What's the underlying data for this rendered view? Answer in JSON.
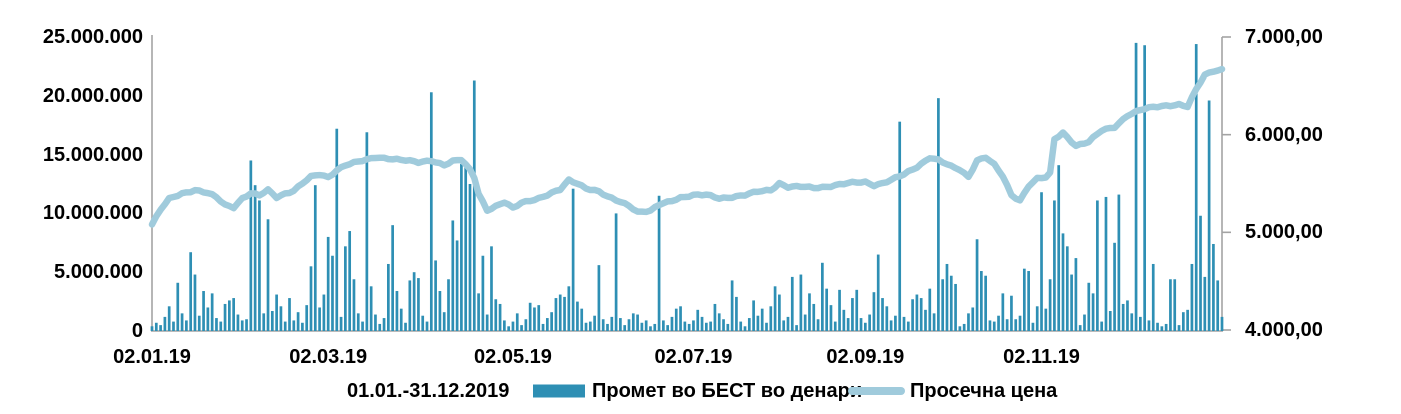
{
  "chart_data": {
    "type": "bar",
    "combo": "bar+line dual axis",
    "title": "",
    "n_points": 250,
    "x_tick_labels": [
      "02.01.19",
      "02.03.19",
      "02.05.19",
      "02.07.19",
      "02.09.19",
      "02.11.19"
    ],
    "x_tick_indices": [
      0,
      41,
      84,
      126,
      166,
      207
    ],
    "left_axis": {
      "labels": [
        "25.000.000",
        "20.000.000",
        "15.000.000",
        "10.000.000",
        "5.000.000",
        "0"
      ],
      "min": 0,
      "max": 25000000,
      "applies_to": "Промет во БЕСТ во денари"
    },
    "right_axis": {
      "labels": [
        "7.000,00",
        "6.000,00",
        "5.000,00",
        "4.000,00"
      ],
      "min": 4000,
      "max": 7000,
      "applies_to": "Просечна цена"
    },
    "grid": "off",
    "legend_position": "bottom",
    "series": [
      {
        "name": "Промет во БЕСТ во денари",
        "type": "bar",
        "axis": "left",
        "unit": "denars (millions)",
        "values_millions": [
          0.4,
          0.7,
          0.5,
          1.2,
          2.1,
          0.8,
          4.1,
          1.5,
          0.9,
          6.7,
          4.8,
          1.3,
          3.4,
          2.0,
          3.2,
          1.1,
          0.8,
          2.3,
          2.6,
          2.8,
          1.4,
          0.9,
          1.0,
          14.5,
          12.4,
          11.1,
          1.5,
          9.5,
          1.7,
          3.1,
          2.1,
          0.8,
          2.8,
          0.9,
          1.6,
          0.7,
          2.2,
          5.5,
          12.4,
          2.0,
          3.1,
          8.0,
          6.4,
          17.2,
          1.2,
          7.2,
          8.5,
          4.4,
          1.5,
          0.8,
          16.9,
          3.8,
          1.4,
          0.6,
          1.1,
          5.7,
          9.0,
          3.4,
          1.9,
          0.7,
          4.3,
          5.0,
          4.5,
          1.3,
          0.8,
          20.3,
          6.0,
          3.4,
          1.6,
          4.4,
          9.4,
          7.7,
          14.2,
          14.3,
          12.5,
          21.3,
          3.2,
          6.4,
          1.4,
          7.2,
          2.7,
          2.3,
          0.9,
          0.4,
          0.8,
          1.5,
          0.5,
          1.0,
          2.4,
          2.0,
          2.2,
          0.6,
          1.1,
          1.6,
          2.8,
          3.1,
          2.9,
          3.8,
          12.1,
          2.5,
          1.9,
          0.7,
          0.8,
          1.3,
          5.6,
          1.0,
          0.6,
          1.2,
          10.0,
          1.1,
          0.5,
          1.0,
          1.5,
          1.4,
          0.7,
          0.9,
          0.4,
          0.6,
          11.5,
          0.9,
          0.5,
          1.2,
          1.9,
          2.1,
          0.8,
          0.6,
          0.9,
          1.8,
          1.2,
          0.7,
          0.8,
          2.3,
          1.5,
          1.0,
          0.6,
          4.3,
          2.9,
          0.8,
          0.4,
          1.1,
          2.6,
          1.3,
          1.9,
          0.7,
          2.1,
          3.8,
          3.1,
          0.9,
          1.2,
          4.6,
          0.5,
          4.8,
          1.4,
          3.2,
          2.3,
          1.0,
          5.8,
          3.6,
          2.2,
          0.8,
          3.5,
          1.8,
          1.1,
          2.8,
          3.5,
          1.1,
          0.7,
          1.4,
          3.3,
          6.5,
          2.8,
          2.1,
          0.9,
          1.3,
          17.8,
          1.2,
          0.8,
          2.7,
          3.1,
          2.8,
          1.8,
          3.6,
          1.5,
          19.8,
          4.4,
          5.7,
          4.7,
          4.0,
          0.4,
          0.6,
          1.5,
          2.0,
          7.8,
          5.1,
          4.7,
          0.9,
          0.8,
          1.3,
          3.2,
          1.0,
          3.0,
          1.0,
          1.3,
          5.3,
          5.1,
          0.7,
          2.1,
          11.8,
          1.9,
          4.4,
          11.1,
          14.1,
          8.3,
          7.2,
          4.8,
          6.2,
          0.5,
          1.4,
          4.1,
          3.2,
          11.1,
          0.8,
          11.4,
          1.7,
          7.5,
          11.6,
          2.3,
          2.6,
          1.5,
          24.5,
          1.2,
          24.3,
          0.9,
          5.7,
          0.7,
          0.4,
          0.6,
          4.4,
          4.4,
          0.5,
          1.6,
          1.8,
          5.7,
          24.4,
          9.8,
          4.6,
          19.6,
          7.4,
          4.3,
          1.2
        ]
      },
      {
        "name": "Просечна цена",
        "type": "line",
        "axis": "right",
        "unit": "denars",
        "keypoints": [
          [
            0,
            5080
          ],
          [
            2,
            5230
          ],
          [
            4,
            5340
          ],
          [
            7,
            5400
          ],
          [
            10,
            5435
          ],
          [
            13,
            5400
          ],
          [
            15,
            5355
          ],
          [
            17,
            5280
          ],
          [
            19,
            5260
          ],
          [
            21,
            5350
          ],
          [
            23,
            5400
          ],
          [
            25,
            5375
          ],
          [
            27,
            5430
          ],
          [
            29,
            5360
          ],
          [
            31,
            5400
          ],
          [
            33,
            5430
          ],
          [
            35,
            5500
          ],
          [
            37,
            5565
          ],
          [
            39,
            5590
          ],
          [
            41,
            5565
          ],
          [
            43,
            5640
          ],
          [
            45,
            5690
          ],
          [
            48,
            5720
          ],
          [
            50,
            5740
          ],
          [
            52,
            5770
          ],
          [
            55,
            5760
          ],
          [
            58,
            5740
          ],
          [
            62,
            5715
          ],
          [
            65,
            5740
          ],
          [
            68,
            5690
          ],
          [
            70,
            5725
          ],
          [
            72,
            5740
          ],
          [
            74,
            5640
          ],
          [
            75,
            5565
          ],
          [
            76,
            5400
          ],
          [
            78,
            5230
          ],
          [
            80,
            5265
          ],
          [
            82,
            5305
          ],
          [
            84,
            5245
          ],
          [
            86,
            5305
          ],
          [
            88,
            5330
          ],
          [
            90,
            5350
          ],
          [
            92,
            5380
          ],
          [
            95,
            5435
          ],
          [
            97,
            5535
          ],
          [
            99,
            5505
          ],
          [
            101,
            5455
          ],
          [
            104,
            5415
          ],
          [
            106,
            5360
          ],
          [
            108,
            5330
          ],
          [
            111,
            5280
          ],
          [
            113,
            5210
          ],
          [
            116,
            5215
          ],
          [
            118,
            5280
          ],
          [
            120,
            5310
          ],
          [
            123,
            5360
          ],
          [
            126,
            5380
          ],
          [
            129,
            5380
          ],
          [
            132,
            5350
          ],
          [
            135,
            5365
          ],
          [
            138,
            5380
          ],
          [
            141,
            5415
          ],
          [
            144,
            5435
          ],
          [
            146,
            5505
          ],
          [
            148,
            5465
          ],
          [
            151,
            5465
          ],
          [
            154,
            5455
          ],
          [
            157,
            5470
          ],
          [
            160,
            5490
          ],
          [
            163,
            5505
          ],
          [
            166,
            5515
          ],
          [
            168,
            5485
          ],
          [
            170,
            5505
          ],
          [
            172,
            5535
          ],
          [
            175,
            5590
          ],
          [
            178,
            5670
          ],
          [
            181,
            5770
          ],
          [
            183,
            5740
          ],
          [
            186,
            5670
          ],
          [
            188,
            5640
          ],
          [
            190,
            5570
          ],
          [
            192,
            5740
          ],
          [
            194,
            5770
          ],
          [
            196,
            5690
          ],
          [
            198,
            5570
          ],
          [
            200,
            5380
          ],
          [
            202,
            5330
          ],
          [
            204,
            5480
          ],
          [
            206,
            5550
          ],
          [
            208,
            5560
          ],
          [
            209,
            5600
          ],
          [
            210,
            5950
          ],
          [
            212,
            6020
          ],
          [
            215,
            5890
          ],
          [
            218,
            5925
          ],
          [
            221,
            6040
          ],
          [
            224,
            6080
          ],
          [
            227,
            6200
          ],
          [
            230,
            6250
          ],
          [
            233,
            6280
          ],
          [
            236,
            6300
          ],
          [
            239,
            6310
          ],
          [
            241,
            6285
          ],
          [
            243,
            6460
          ],
          [
            245,
            6610
          ],
          [
            247,
            6655
          ],
          [
            249,
            6670
          ]
        ]
      }
    ],
    "legend": {
      "period_label": "01.01.-31.12.2019",
      "bars_label": "Промет во БЕСТ во денари",
      "line_label": "Просечна цена"
    }
  },
  "colors": {
    "bar": "#2e8fb4",
    "line": "#a0cbdc",
    "axis": "#a3a3a3",
    "text": "#000000",
    "background": "#ffffff"
  }
}
